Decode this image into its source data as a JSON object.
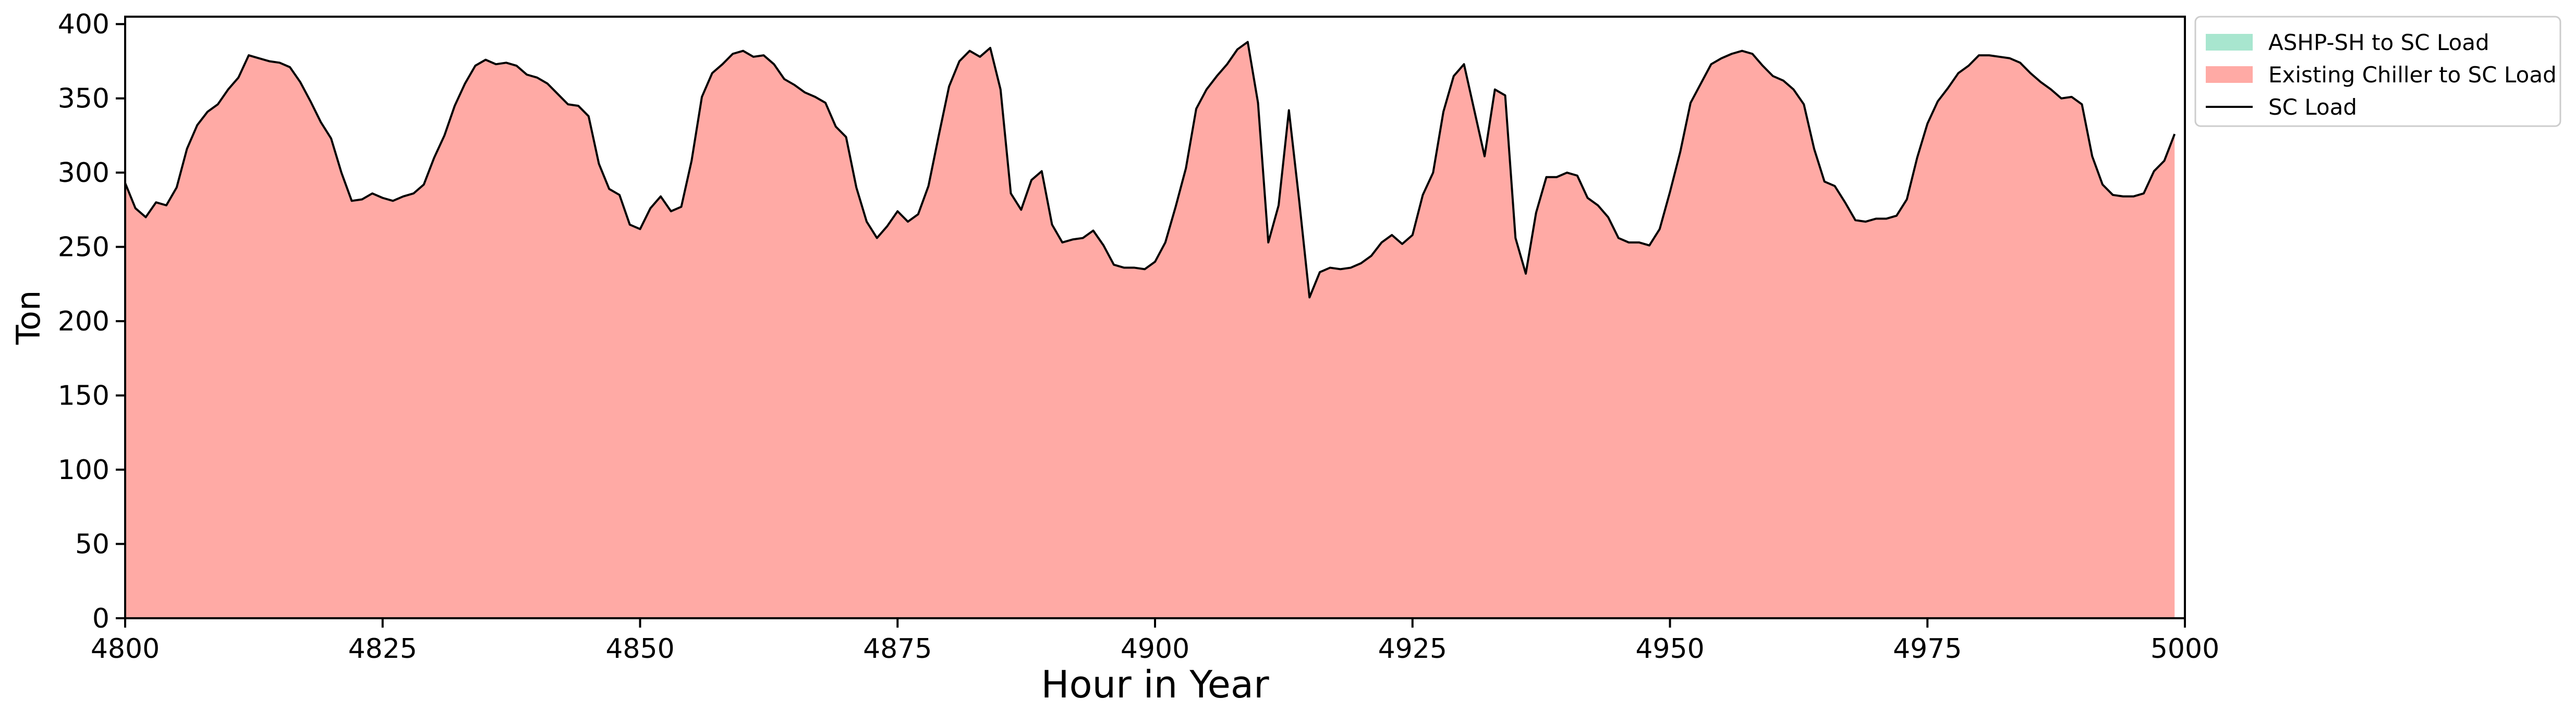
{
  "chart_data": {
    "type": "area",
    "xlabel": "Hour in Year",
    "ylabel": "Ton",
    "xlim": [
      4800,
      5000
    ],
    "ylim": [
      0,
      405
    ],
    "x_ticks": [
      4800,
      4825,
      4850,
      4875,
      4900,
      4925,
      4950,
      4975,
      5000
    ],
    "y_ticks": [
      0,
      50,
      100,
      150,
      200,
      250,
      300,
      350,
      400
    ],
    "grid": false,
    "legend_position": "top-right, outside plot",
    "x": [
      4800,
      4801,
      4802,
      4803,
      4804,
      4805,
      4806,
      4807,
      4808,
      4809,
      4810,
      4811,
      4812,
      4813,
      4814,
      4815,
      4816,
      4817,
      4818,
      4819,
      4820,
      4821,
      4822,
      4823,
      4824,
      4825,
      4826,
      4827,
      4828,
      4829,
      4830,
      4831,
      4832,
      4833,
      4834,
      4835,
      4836,
      4837,
      4838,
      4839,
      4840,
      4841,
      4842,
      4843,
      4844,
      4845,
      4846,
      4847,
      4848,
      4849,
      4850,
      4851,
      4852,
      4853,
      4854,
      4855,
      4856,
      4857,
      4858,
      4859,
      4860,
      4861,
      4862,
      4863,
      4864,
      4865,
      4866,
      4867,
      4868,
      4869,
      4870,
      4871,
      4872,
      4873,
      4874,
      4875,
      4876,
      4877,
      4878,
      4879,
      4880,
      4881,
      4882,
      4883,
      4884,
      4885,
      4886,
      4887,
      4888,
      4889,
      4890,
      4891,
      4892,
      4893,
      4894,
      4895,
      4896,
      4897,
      4898,
      4899,
      4900,
      4901,
      4902,
      4903,
      4904,
      4905,
      4906,
      4907,
      4908,
      4909,
      4910,
      4911,
      4912,
      4913,
      4914,
      4915,
      4916,
      4917,
      4918,
      4919,
      4920,
      4921,
      4922,
      4923,
      4924,
      4925,
      4926,
      4927,
      4928,
      4929,
      4930,
      4931,
      4932,
      4933,
      4934,
      4935,
      4936,
      4937,
      4938,
      4939,
      4940,
      4941,
      4942,
      4943,
      4944,
      4945,
      4946,
      4947,
      4948,
      4949,
      4950,
      4951,
      4952,
      4953,
      4954,
      4955,
      4956,
      4957,
      4958,
      4959,
      4960,
      4961,
      4962,
      4963,
      4964,
      4965,
      4966,
      4967,
      4968,
      4969,
      4970,
      4971,
      4972,
      4973,
      4974,
      4975,
      4976,
      4977,
      4978,
      4979,
      4980,
      4981,
      4982,
      4983,
      4984,
      4985,
      4986,
      4987,
      4988,
      4989,
      4990,
      4991,
      4992,
      4993,
      4994,
      4995,
      4996,
      4997,
      4998,
      4999
    ],
    "series": [
      {
        "name": "ASHP-SH to SC Load",
        "kind": "stacked-area",
        "color": "#a8e6cf",
        "values": [
          0,
          0,
          0,
          0,
          0,
          0,
          0,
          0,
          0,
          0,
          0,
          0,
          0,
          0,
          0,
          0,
          0,
          0,
          0,
          0,
          0,
          0,
          0,
          0,
          0,
          0,
          0,
          0,
          0,
          0,
          0,
          0,
          0,
          0,
          0,
          0,
          0,
          0,
          0,
          0,
          0,
          0,
          0,
          0,
          0,
          0,
          0,
          0,
          0,
          0,
          0,
          0,
          0,
          0,
          0,
          0,
          0,
          0,
          0,
          0,
          0,
          0,
          0,
          0,
          0,
          0,
          0,
          0,
          0,
          0,
          0,
          0,
          0,
          0,
          0,
          0,
          0,
          0,
          0,
          0,
          0,
          0,
          0,
          0,
          0,
          0,
          0,
          0,
          0,
          0,
          0,
          0,
          0,
          0,
          0,
          0,
          0,
          0,
          0,
          0,
          0,
          0,
          0,
          0,
          0,
          0,
          0,
          0,
          0,
          0,
          0,
          0,
          0,
          0,
          0,
          0,
          0,
          0,
          0,
          0,
          0,
          0,
          0,
          0,
          0,
          0,
          0,
          0,
          0,
          0,
          0,
          0,
          0,
          0,
          0,
          0,
          0,
          0,
          0,
          0,
          0,
          0,
          0,
          0,
          0,
          0,
          0,
          0,
          0,
          0,
          0,
          0,
          0,
          0,
          0,
          0,
          0,
          0,
          0,
          0,
          0,
          0,
          0,
          0,
          0,
          0,
          0,
          0,
          0,
          0,
          0,
          0,
          0,
          0,
          0,
          0,
          0,
          0,
          0,
          0,
          0,
          0,
          0,
          0,
          0,
          0,
          0,
          0,
          0,
          0,
          0,
          0,
          0,
          0,
          0,
          0,
          0,
          0,
          0,
          0
        ]
      },
      {
        "name": "Existing Chiller to SC Load",
        "kind": "stacked-area",
        "color": "#ffaaa5",
        "values": [
          293,
          276,
          270,
          280,
          278,
          290,
          316,
          332,
          341,
          346,
          356,
          364,
          379,
          377,
          375,
          374,
          371,
          361,
          348,
          334,
          323,
          300,
          281,
          282,
          286,
          283,
          281,
          284,
          286,
          292,
          310,
          325,
          345,
          360,
          372,
          376,
          373,
          374,
          372,
          366,
          364,
          360,
          353,
          346,
          345,
          338,
          306,
          289,
          285,
          265,
          262,
          276,
          284,
          274,
          277,
          308,
          351,
          367,
          373,
          380,
          382,
          378,
          379,
          373,
          363,
          359,
          354,
          351,
          347,
          331,
          324,
          290,
          267,
          256,
          264,
          274,
          267,
          272,
          291,
          325,
          358,
          375,
          382,
          378,
          384,
          356,
          286,
          275,
          295,
          301,
          265,
          253,
          255,
          256,
          261,
          251,
          238,
          236,
          236,
          235,
          240,
          253,
          277,
          303,
          343,
          356,
          365,
          373,
          383,
          388,
          347,
          253,
          278,
          342,
          281,
          216,
          233,
          236,
          235,
          236,
          239,
          244,
          253,
          258,
          252,
          258,
          285,
          300,
          341,
          365,
          373,
          342,
          311,
          356,
          352,
          256,
          232,
          273,
          297,
          297,
          300,
          298,
          283,
          278,
          270,
          256,
          253,
          253,
          251,
          262,
          287,
          314,
          347,
          360,
          373,
          377,
          380,
          382,
          380,
          372,
          365,
          362,
          356,
          346,
          316,
          294,
          291,
          280,
          268,
          267,
          269,
          269,
          271,
          282,
          310,
          333,
          348,
          357,
          367,
          372,
          379,
          379,
          378,
          377,
          374,
          367,
          361,
          356,
          350,
          351,
          346,
          311,
          292,
          285,
          284,
          284,
          286,
          301,
          308,
          326
        ]
      },
      {
        "name": "SC Load",
        "kind": "line",
        "color": "#000000",
        "values": [
          293,
          276,
          270,
          280,
          278,
          290,
          316,
          332,
          341,
          346,
          356,
          364,
          379,
          377,
          375,
          374,
          371,
          361,
          348,
          334,
          323,
          300,
          281,
          282,
          286,
          283,
          281,
          284,
          286,
          292,
          310,
          325,
          345,
          360,
          372,
          376,
          373,
          374,
          372,
          366,
          364,
          360,
          353,
          346,
          345,
          338,
          306,
          289,
          285,
          265,
          262,
          276,
          284,
          274,
          277,
          308,
          351,
          367,
          373,
          380,
          382,
          378,
          379,
          373,
          363,
          359,
          354,
          351,
          347,
          331,
          324,
          290,
          267,
          256,
          264,
          274,
          267,
          272,
          291,
          325,
          358,
          375,
          382,
          378,
          384,
          356,
          286,
          275,
          295,
          301,
          265,
          253,
          255,
          256,
          261,
          251,
          238,
          236,
          236,
          235,
          240,
          253,
          277,
          303,
          343,
          356,
          365,
          373,
          383,
          388,
          347,
          253,
          278,
          342,
          281,
          216,
          233,
          236,
          235,
          236,
          239,
          244,
          253,
          258,
          252,
          258,
          285,
          300,
          341,
          365,
          373,
          342,
          311,
          356,
          352,
          256,
          232,
          273,
          297,
          297,
          300,
          298,
          283,
          278,
          270,
          256,
          253,
          253,
          251,
          262,
          287,
          314,
          347,
          360,
          373,
          377,
          380,
          382,
          380,
          372,
          365,
          362,
          356,
          346,
          316,
          294,
          291,
          280,
          268,
          267,
          269,
          269,
          271,
          282,
          310,
          333,
          348,
          357,
          367,
          372,
          379,
          379,
          378,
          377,
          374,
          367,
          361,
          356,
          350,
          351,
          346,
          311,
          292,
          285,
          284,
          284,
          286,
          301,
          308,
          326
        ]
      }
    ]
  }
}
